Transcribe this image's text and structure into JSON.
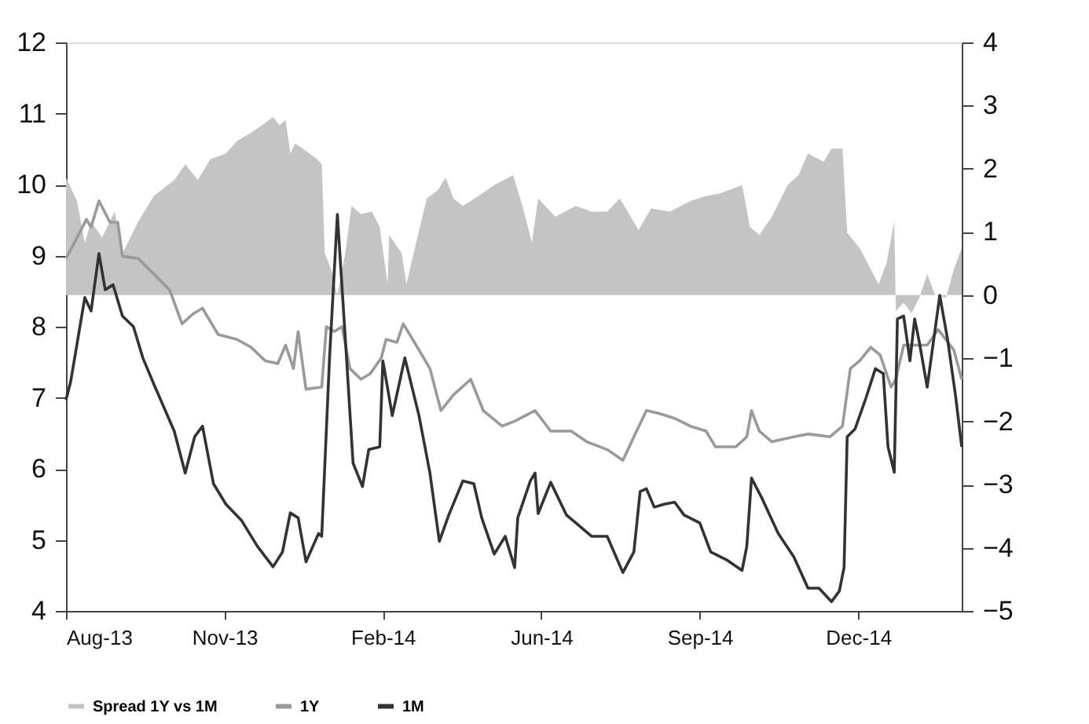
{
  "chart_data": {
    "type": "line",
    "xlim": [
      "2013-08-05",
      "2015-02-27"
    ],
    "xticks": [
      {
        "value": "2013-08-05",
        "label": "Aug-13"
      },
      {
        "value": "2013-11-14",
        "label": "Nov-13"
      },
      {
        "value": "2014-02-23",
        "label": "Feb-14"
      },
      {
        "value": "2014-06-04",
        "label": "Jun-14"
      },
      {
        "value": "2014-09-13",
        "label": "Sep-14"
      },
      {
        "value": "2014-12-23",
        "label": "Dec-14"
      }
    ],
    "ylim": [
      4,
      12
    ],
    "yticks": [
      4,
      5,
      6,
      7,
      8,
      9,
      10,
      11,
      12
    ],
    "y2lim": [
      -5,
      4
    ],
    "y2ticks": [
      -5,
      -4,
      -3,
      -2,
      -1,
      0,
      1,
      2,
      3,
      4
    ],
    "grid": false,
    "legend": "bottom",
    "series": [
      {
        "name": "Spread 1Y vs 1M",
        "type": "area",
        "axis": "y2",
        "color": "#c4c4c4",
        "x": [
          "2013-08-05",
          "2013-08-12",
          "2013-08-17",
          "2013-08-21",
          "2013-08-28",
          "2013-09-05",
          "2013-09-10",
          "2013-09-20",
          "2013-09-30",
          "2013-10-13",
          "2013-10-20",
          "2013-10-28",
          "2013-11-05",
          "2013-11-15",
          "2013-11-22",
          "2013-12-01",
          "2013-12-08",
          "2013-12-15",
          "2013-12-19",
          "2013-12-23",
          "2013-12-26",
          "2013-12-29",
          "2014-01-03",
          "2014-01-12",
          "2014-01-15",
          "2014-01-17",
          "2014-01-21",
          "2014-01-25",
          "2014-01-30",
          "2014-02-03",
          "2014-02-09",
          "2014-02-16",
          "2014-02-21",
          "2014-02-26",
          "2014-02-27",
          "2014-03-07",
          "2014-03-10",
          "2014-03-17",
          "2014-03-23",
          "2014-03-30",
          "2014-04-04",
          "2014-04-09",
          "2014-04-15",
          "2014-04-25",
          "2014-05-05",
          "2014-05-17",
          "2014-05-23",
          "2014-05-29",
          "2014-06-02",
          "2014-06-13",
          "2014-06-26",
          "2014-07-06",
          "2014-07-16",
          "2014-07-24",
          "2014-08-05",
          "2014-08-13",
          "2014-08-25",
          "2014-09-07",
          "2014-09-17",
          "2014-09-26",
          "2014-10-10",
          "2014-10-15",
          "2014-10-21",
          "2014-10-29",
          "2014-11-08",
          "2014-11-15",
          "2014-11-21",
          "2014-12-01",
          "2014-12-06",
          "2014-12-13",
          "2014-12-16",
          "2014-12-24",
          "2014-12-31",
          "2015-01-05",
          "2015-01-10",
          "2015-01-15",
          "2015-01-16",
          "2015-01-21",
          "2015-01-26",
          "2015-01-31",
          "2015-02-05",
          "2015-02-10",
          "2015-02-17",
          "2015-02-22",
          "2015-02-27"
        ],
        "values": [
          1.86,
          1.49,
          0.83,
          1.16,
          0.91,
          1.32,
          0.66,
          1.16,
          1.57,
          1.82,
          2.07,
          1.82,
          2.15,
          2.24,
          2.44,
          2.57,
          2.69,
          2.82,
          2.69,
          2.77,
          2.24,
          2.4,
          2.32,
          2.15,
          2.07,
          0.66,
          0.41,
          0.0,
          0.66,
          1.41,
          1.28,
          1.32,
          1.08,
          0.17,
          0.95,
          0.66,
          0.17,
          0.91,
          1.53,
          1.66,
          1.86,
          1.53,
          1.41,
          1.57,
          1.74,
          1.9,
          1.41,
          0.83,
          1.53,
          1.24,
          1.41,
          1.32,
          1.32,
          1.53,
          1.03,
          1.37,
          1.32,
          1.49,
          1.57,
          1.61,
          1.74,
          1.08,
          0.95,
          1.24,
          1.74,
          1.9,
          2.24,
          2.11,
          2.32,
          2.32,
          0.99,
          0.74,
          0.41,
          0.17,
          0.5,
          1.16,
          -0.25,
          -0.12,
          -0.29,
          -0.04,
          0.33,
          0.0,
          -0.04,
          0.41,
          0.74
        ]
      },
      {
        "name": "1Y",
        "color": "#9a9a9a",
        "x": [
          "2013-08-05",
          "2013-08-12",
          "2013-08-18",
          "2013-08-21",
          "2013-08-26",
          "2013-09-02",
          "2013-09-07",
          "2013-09-10",
          "2013-09-20",
          "2013-09-30",
          "2013-10-10",
          "2013-10-18",
          "2013-10-25",
          "2013-10-31",
          "2013-11-10",
          "2013-11-22",
          "2013-12-01",
          "2013-12-10",
          "2013-12-18",
          "2013-12-23",
          "2013-12-28",
          "2013-12-31",
          "2014-01-05",
          "2014-01-15",
          "2014-01-18",
          "2014-01-23",
          "2014-01-28",
          "2014-02-02",
          "2014-02-09",
          "2014-02-15",
          "2014-02-22",
          "2014-02-25",
          "2014-03-04",
          "2014-03-08",
          "2014-03-17",
          "2014-03-25",
          "2014-04-01",
          "2014-04-09",
          "2014-04-20",
          "2014-04-28",
          "2014-05-10",
          "2014-05-18",
          "2014-05-31",
          "2014-06-10",
          "2014-06-23",
          "2014-07-03",
          "2014-07-16",
          "2014-07-26",
          "2014-08-02",
          "2014-08-10",
          "2014-08-18",
          "2014-08-28",
          "2014-09-07",
          "2014-09-17",
          "2014-09-23",
          "2014-10-06",
          "2014-10-13",
          "2014-10-16",
          "2014-10-21",
          "2014-10-29",
          "2014-11-12",
          "2014-11-21",
          "2014-12-05",
          "2014-12-13",
          "2014-12-18",
          "2014-12-24",
          "2014-12-31",
          "2015-01-06",
          "2015-01-13",
          "2015-01-16",
          "2015-01-21",
          "2015-02-05",
          "2015-02-12",
          "2015-02-22",
          "2015-02-27"
        ],
        "values": [
          8.96,
          9.25,
          9.51,
          9.4,
          9.77,
          9.47,
          9.47,
          8.99,
          8.96,
          8.74,
          8.52,
          8.04,
          8.18,
          8.26,
          7.89,
          7.82,
          7.71,
          7.52,
          7.48,
          7.74,
          7.41,
          7.93,
          7.12,
          7.15,
          8.0,
          7.93,
          8.0,
          7.41,
          7.26,
          7.34,
          7.56,
          7.82,
          7.78,
          8.04,
          7.71,
          7.41,
          6.82,
          7.04,
          7.26,
          6.82,
          6.6,
          6.67,
          6.82,
          6.53,
          6.53,
          6.38,
          6.27,
          6.12,
          6.45,
          6.82,
          6.78,
          6.71,
          6.6,
          6.53,
          6.31,
          6.31,
          6.45,
          6.82,
          6.53,
          6.38,
          6.45,
          6.49,
          6.45,
          6.6,
          7.41,
          7.52,
          7.71,
          7.6,
          7.15,
          7.26,
          7.74,
          7.74,
          7.96,
          7.67,
          7.26
        ]
      },
      {
        "name": "1M",
        "color": "#333333",
        "x": [
          "2013-08-05",
          "2013-08-08",
          "2013-08-17",
          "2013-08-21",
          "2013-08-26",
          "2013-08-30",
          "2013-09-04",
          "2013-09-10",
          "2013-09-17",
          "2013-09-23",
          "2013-09-30",
          "2013-10-13",
          "2013-10-20",
          "2013-10-26",
          "2013-10-31",
          "2013-11-07",
          "2013-11-15",
          "2013-11-25",
          "2013-12-05",
          "2013-12-15",
          "2013-12-21",
          "2013-12-26",
          "2013-12-31",
          "2014-01-05",
          "2014-01-13",
          "2014-01-15",
          "2014-01-20",
          "2014-01-25",
          "2014-01-30",
          "2014-02-04",
          "2014-02-10",
          "2014-02-14",
          "2014-02-21",
          "2014-02-23",
          "2014-03-01",
          "2014-03-09",
          "2014-03-18",
          "2014-03-25",
          "2014-03-31",
          "2014-04-06",
          "2014-04-15",
          "2014-04-22",
          "2014-04-27",
          "2014-05-05",
          "2014-05-12",
          "2014-05-18",
          "2014-05-20",
          "2014-05-28",
          "2014-05-31",
          "2014-06-02",
          "2014-06-10",
          "2014-06-20",
          "2014-06-26",
          "2014-07-06",
          "2014-07-16",
          "2014-07-26",
          "2014-08-02",
          "2014-08-06",
          "2014-08-10",
          "2014-08-15",
          "2014-08-21",
          "2014-08-28",
          "2014-09-03",
          "2014-09-13",
          "2014-09-20",
          "2014-09-30",
          "2014-10-10",
          "2014-10-13",
          "2014-10-16",
          "2014-10-23",
          "2014-11-02",
          "2014-11-12",
          "2014-11-21",
          "2014-11-28",
          "2014-12-06",
          "2014-12-11",
          "2014-12-14",
          "2014-12-16",
          "2014-12-21",
          "2014-12-28",
          "2015-01-03",
          "2015-01-08",
          "2015-01-11",
          "2015-01-15",
          "2015-01-17",
          "2015-01-21",
          "2015-01-25",
          "2015-01-28",
          "2015-01-31",
          "2015-02-05",
          "2015-02-13",
          "2015-02-18",
          "2015-02-23",
          "2015-02-27"
        ],
        "values": [
          6.97,
          7.23,
          8.41,
          8.22,
          9.03,
          8.52,
          8.59,
          8.15,
          8.0,
          7.56,
          7.19,
          6.53,
          5.94,
          6.45,
          6.6,
          5.79,
          5.5,
          5.27,
          4.91,
          4.62,
          4.83,
          5.38,
          5.31,
          4.69,
          5.09,
          5.05,
          7.56,
          9.58,
          7.85,
          6.08,
          5.75,
          6.27,
          6.31,
          7.52,
          6.75,
          7.56,
          6.75,
          5.94,
          4.98,
          5.35,
          5.83,
          5.79,
          5.31,
          4.8,
          5.05,
          4.61,
          5.31,
          5.83,
          5.94,
          5.37,
          5.81,
          5.35,
          5.24,
          5.05,
          5.05,
          4.54,
          4.83,
          5.68,
          5.72,
          5.46,
          5.5,
          5.53,
          5.35,
          5.24,
          4.83,
          4.72,
          4.57,
          4.91,
          5.87,
          5.57,
          5.09,
          4.76,
          4.32,
          4.32,
          4.13,
          4.28,
          4.61,
          6.45,
          6.56,
          7.0,
          7.41,
          7.34,
          6.31,
          5.95,
          8.11,
          8.15,
          7.52,
          8.11,
          7.78,
          7.15,
          8.44,
          7.82,
          7.04,
          6.31
        ]
      }
    ]
  }
}
